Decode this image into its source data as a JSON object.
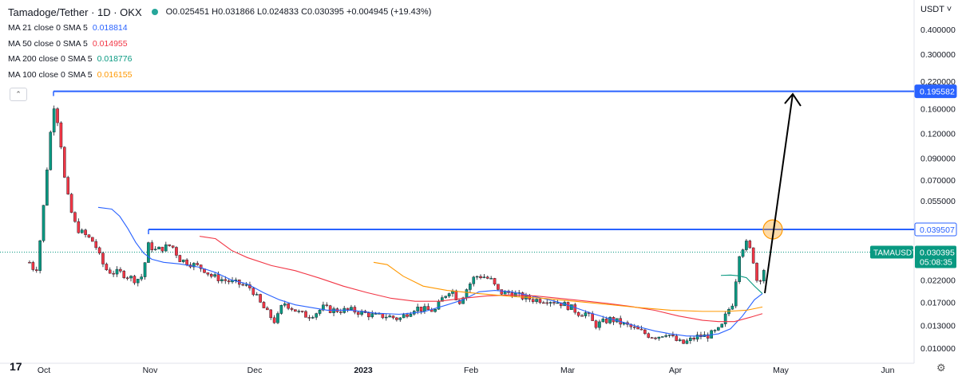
{
  "header": {
    "symbol": "Tamadoge/Tether · 1D · OKX",
    "ohlc": "O0.025451  H0.031866  L0.024833  C0.030395  +0.004945 (+19.43%)"
  },
  "indicators": [
    {
      "label": "MA 21 close 0 SMA 5",
      "value": "0.018814",
      "color": "#2962ff"
    },
    {
      "label": "MA 50 close 0 SMA 5",
      "value": "0.014955",
      "color": "#f23645"
    },
    {
      "label": "MA 200 close 0 SMA 5",
      "value": "0.018776",
      "color": "#089981"
    },
    {
      "label": "MA 100 close 0 SMA 5",
      "value": "0.016155",
      "color": "#ff9800"
    }
  ],
  "currency_label": "USDT ˅",
  "collapse_icon": "chevron-up-icon",
  "logo_text": "17",
  "chart_data": {
    "type": "candlestick",
    "scale": "log",
    "y_ticks": [
      "0.400000",
      "0.300000",
      "0.220000",
      "0.160000",
      "0.120000",
      "0.090000",
      "0.070000",
      "0.055000",
      "0.039507",
      "0.022000",
      "0.017000",
      "0.013000",
      "0.010000"
    ],
    "x_ticks": [
      "Oct",
      "Nov",
      "Dec",
      "2023",
      "Feb",
      "Mar",
      "Apr",
      "May",
      "Jun"
    ],
    "markers": [
      {
        "label": "0.195582",
        "value": 0.195582,
        "color": "#2962ff"
      },
      {
        "label": "0.039507",
        "value": 0.039507,
        "color": "#2962ff"
      }
    ],
    "price_tag": {
      "symbol": "TAMAUSDT",
      "price": "0.030395",
      "countdown": "05:08:35",
      "value": 0.030395,
      "color": "#089981"
    },
    "colors": {
      "up": "#089981",
      "down": "#f23645",
      "ma21": "#2962ff",
      "ma50": "#f23645",
      "ma100": "#ff9800",
      "ma200": "#089981",
      "level": "#2962ff",
      "arrow": "#000000",
      "circle": "#ff9800"
    }
  }
}
